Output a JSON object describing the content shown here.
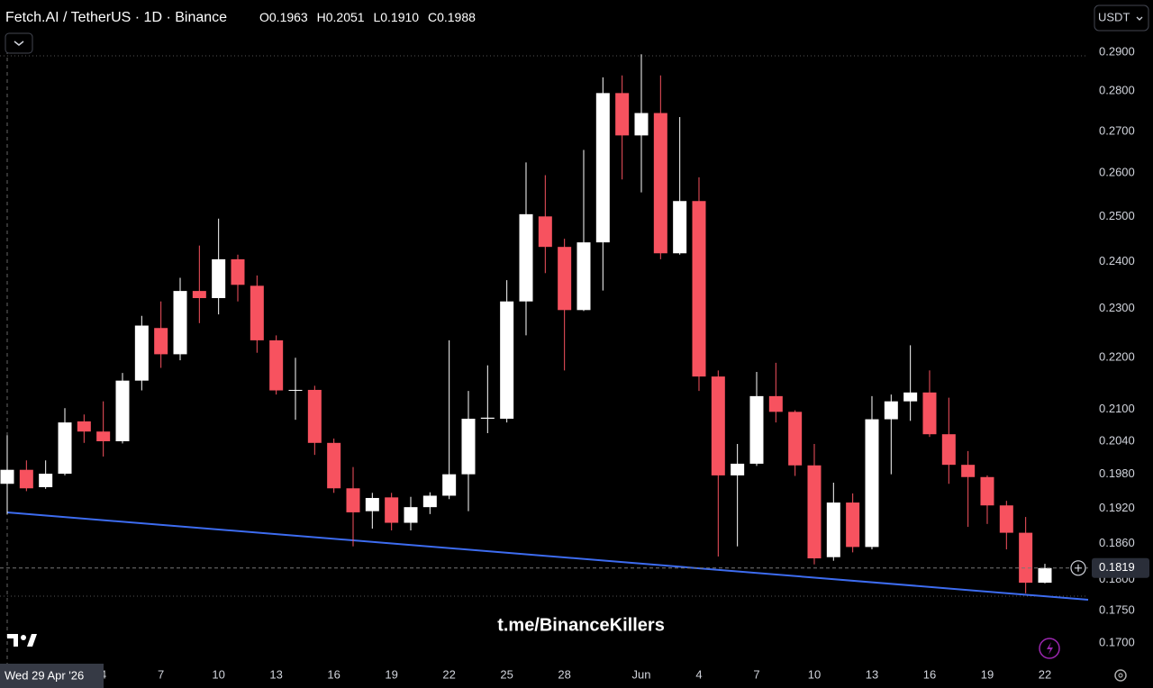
{
  "header": {
    "title": "Fetch.AI / TetherUS · 1D · Binance",
    "ohlc": [
      {
        "label": "O",
        "value": "0.1963"
      },
      {
        "label": "H",
        "value": "0.2051"
      },
      {
        "label": "L",
        "value": "0.1910"
      },
      {
        "label": "C",
        "value": "0.1988"
      }
    ],
    "currency": "USDT"
  },
  "watermark": "t.me/BinanceKillers",
  "chart_data": {
    "type": "candlestick",
    "log_scale": true,
    "grid": false,
    "up_color": "#ffffff",
    "down_color": "#f7525f",
    "crosshair_label": "Wed 29 Apr '26",
    "categories": [
      null,
      null,
      null,
      null,
      null,
      "4",
      null,
      null,
      "7",
      null,
      null,
      "10",
      null,
      null,
      "13",
      null,
      null,
      "16",
      null,
      null,
      "19",
      null,
      null,
      "22",
      null,
      null,
      "25",
      null,
      null,
      "28",
      null,
      null,
      null,
      "Jun",
      null,
      null,
      "4",
      null,
      null,
      "7",
      null,
      null,
      "10",
      null,
      null,
      "13",
      null,
      null,
      "16",
      null,
      null,
      "19",
      null,
      null,
      "22"
    ],
    "open": [
      0.1963,
      0.1988,
      0.1957,
      0.1981,
      0.2077,
      0.2058,
      0.204,
      0.2155,
      0.226,
      0.2207,
      0.2337,
      0.2322,
      0.2405,
      0.2348,
      0.2235,
      0.2136,
      0.2137,
      0.2037,
      0.1955,
      0.1915,
      0.1939,
      0.1895,
      0.1922,
      0.1942,
      0.198,
      0.2082,
      0.2082,
      0.2315,
      0.25,
      0.2432,
      0.2297,
      0.2442,
      0.2795,
      0.269,
      0.2745,
      0.2418,
      0.2535,
      0.2163,
      0.1978,
      0.1999,
      0.2125,
      0.2095,
      0.1996,
      0.1837,
      0.193,
      0.1854,
      0.2081,
      0.2115,
      0.2132,
      0.2053,
      0.1997,
      0.1975,
      0.1925,
      0.1878,
      0.1795
    ],
    "high": [
      0.2051,
      0.2005,
      0.2005,
      0.2102,
      0.209,
      0.2115,
      0.217,
      0.2285,
      0.2315,
      0.2365,
      0.2435,
      0.2495,
      0.2415,
      0.237,
      0.2245,
      0.22,
      0.2145,
      0.2045,
      0.1993,
      0.1947,
      0.1947,
      0.194,
      0.1948,
      0.2235,
      0.2135,
      0.2185,
      0.236,
      0.2625,
      0.2595,
      0.245,
      0.2655,
      0.2835,
      0.284,
      0.2895,
      0.284,
      0.2735,
      0.259,
      0.2175,
      0.2035,
      0.2172,
      0.219,
      0.2098,
      0.2035,
      0.1965,
      0.1946,
      0.2125,
      0.2128,
      0.2225,
      0.2175,
      0.2122,
      0.2022,
      0.1978,
      0.1933,
      0.1905,
      0.1826
    ],
    "low": [
      0.191,
      0.195,
      0.1954,
      0.1978,
      0.2037,
      0.2012,
      0.2036,
      0.2136,
      0.218,
      0.2195,
      0.227,
      0.2288,
      0.2315,
      0.221,
      0.2128,
      0.208,
      0.2015,
      0.1947,
      0.1855,
      0.1885,
      0.1882,
      0.1882,
      0.191,
      0.1936,
      0.1915,
      0.2055,
      0.2075,
      0.2245,
      0.2375,
      0.2175,
      0.2295,
      0.2338,
      0.2585,
      0.2555,
      0.2405,
      0.2415,
      0.2135,
      0.1838,
      0.1855,
      0.1995,
      0.2075,
      0.1977,
      0.1825,
      0.1831,
      0.1845,
      0.185,
      0.198,
      0.2078,
      0.2048,
      0.1963,
      0.1888,
      0.1893,
      0.185,
      0.1778,
      0.1794
    ],
    "close": [
      0.1988,
      0.1955,
      0.1981,
      0.2075,
      0.2058,
      0.204,
      0.2155,
      0.2265,
      0.2207,
      0.2337,
      0.2322,
      0.2405,
      0.235,
      0.2235,
      0.2136,
      0.2137,
      0.2037,
      0.1955,
      0.1913,
      0.1938,
      0.1895,
      0.1922,
      0.1942,
      0.198,
      0.2082,
      0.2084,
      0.2315,
      0.2505,
      0.2432,
      0.2297,
      0.2442,
      0.2795,
      0.269,
      0.2745,
      0.2418,
      0.2535,
      0.2163,
      0.1978,
      0.1999,
      0.2125,
      0.2095,
      0.1996,
      0.1835,
      0.193,
      0.1854,
      0.2081,
      0.2115,
      0.2132,
      0.2053,
      0.1997,
      0.1975,
      0.1925,
      0.1878,
      0.1795,
      0.1819
    ],
    "last_price": 0.1819,
    "ylim": [
      0.1671,
      0.2943
    ],
    "yticks": [
      {
        "value": 0.29,
        "label": "0.2900"
      },
      {
        "value": 0.28,
        "label": "0.2800"
      },
      {
        "value": 0.27,
        "label": "0.2700"
      },
      {
        "value": 0.26,
        "label": "0.2600"
      },
      {
        "value": 0.25,
        "label": "0.2500"
      },
      {
        "value": 0.24,
        "label": "0.2400"
      },
      {
        "value": 0.23,
        "label": "0.2300"
      },
      {
        "value": 0.22,
        "label": "0.2200"
      },
      {
        "value": 0.21,
        "label": "0.2100"
      },
      {
        "value": 0.204,
        "label": "0.2040"
      },
      {
        "value": 0.198,
        "label": "0.1980"
      },
      {
        "value": 0.192,
        "label": "0.1920"
      },
      {
        "value": 0.186,
        "label": "0.1860"
      },
      {
        "value": 0.18,
        "label": "0.1800"
      },
      {
        "value": 0.175,
        "label": "0.1750"
      },
      {
        "value": 0.17,
        "label": "0.1700"
      }
    ]
  }
}
